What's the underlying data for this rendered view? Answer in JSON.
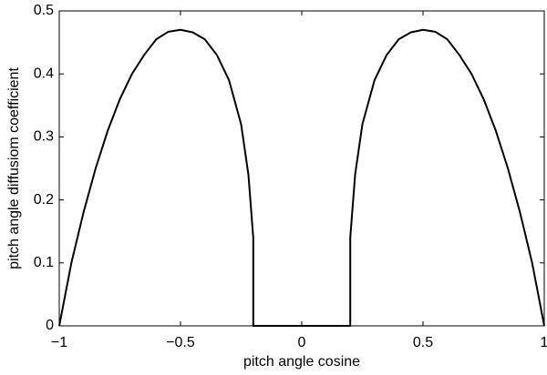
{
  "chart_data": {
    "type": "line",
    "xlabel": "pitch angle cosine",
    "ylabel": "pitch angle diffusiom coefficient",
    "x": [
      -1,
      -0.95,
      -0.9,
      -0.85,
      -0.8,
      -0.75,
      -0.7,
      -0.65,
      -0.6,
      -0.55,
      -0.5,
      -0.45,
      -0.4,
      -0.35,
      -0.3,
      -0.25,
      -0.22,
      -0.2,
      -0.2,
      0.2,
      0.2,
      0.22,
      0.25,
      0.3,
      0.35,
      0.4,
      0.45,
      0.5,
      0.55,
      0.6,
      0.65,
      0.7,
      0.75,
      0.8,
      0.85,
      0.9,
      0.95,
      1
    ],
    "series": [
      {
        "color": "#000000",
        "values": [
          0,
          0.1,
          0.18,
          0.25,
          0.31,
          0.36,
          0.4,
          0.43,
          0.455,
          0.467,
          0.47,
          0.466,
          0.455,
          0.43,
          0.39,
          0.32,
          0.24,
          0.14,
          0,
          0,
          0.14,
          0.24,
          0.32,
          0.39,
          0.43,
          0.455,
          0.466,
          0.47,
          0.467,
          0.455,
          0.43,
          0.4,
          0.36,
          0.31,
          0.25,
          0.18,
          0.1,
          0
        ]
      }
    ],
    "xlim": [
      -1,
      1
    ],
    "ylim": [
      0,
      0.5
    ],
    "xticks": [
      {
        "value": -1,
        "label": "−1"
      },
      {
        "value": -0.5,
        "label": "−0.5"
      },
      0,
      0.5,
      1
    ],
    "yticks": [
      0,
      0.1,
      0.2,
      0.3,
      0.4,
      0.5
    ]
  }
}
